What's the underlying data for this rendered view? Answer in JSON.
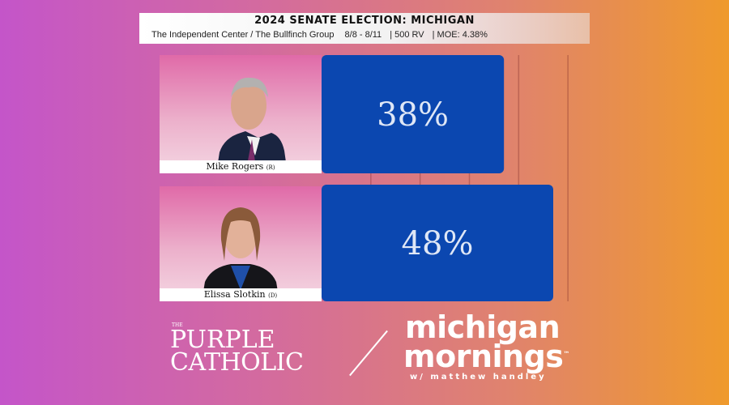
{
  "header": {
    "title": "2024 SENATE ELECTION: MICHIGAN",
    "pollster": "The Independent Center / The Bullfinch Group",
    "dates": "8/8 - 8/11",
    "sample": "500 RV",
    "moe": "MOE: 4.38%"
  },
  "chart_data": {
    "type": "bar",
    "orientation": "horizontal",
    "title": "2024 SENATE ELECTION: MICHIGAN",
    "categories": [
      "Mike Rogers (R)",
      "Elissa Slotkin (D)"
    ],
    "values": [
      38,
      48
    ],
    "labels": [
      "38%",
      "48%"
    ],
    "xlim": [
      0,
      60
    ],
    "grid": true,
    "bar_color": "#0b47b0"
  },
  "candidates": [
    {
      "name": "Mike Rogers",
      "party": "(R)"
    },
    {
      "name": "Elissa Slotkin",
      "party": "(D)"
    }
  ],
  "footer": {
    "purple_catholic": {
      "the": "THE",
      "line1": "PURPLE",
      "line2": "CATHOLIC"
    },
    "michigan_mornings": {
      "line1": "michigan",
      "line2": "mornings",
      "tm": "™",
      "tagline": "w/ matthew handley"
    }
  }
}
